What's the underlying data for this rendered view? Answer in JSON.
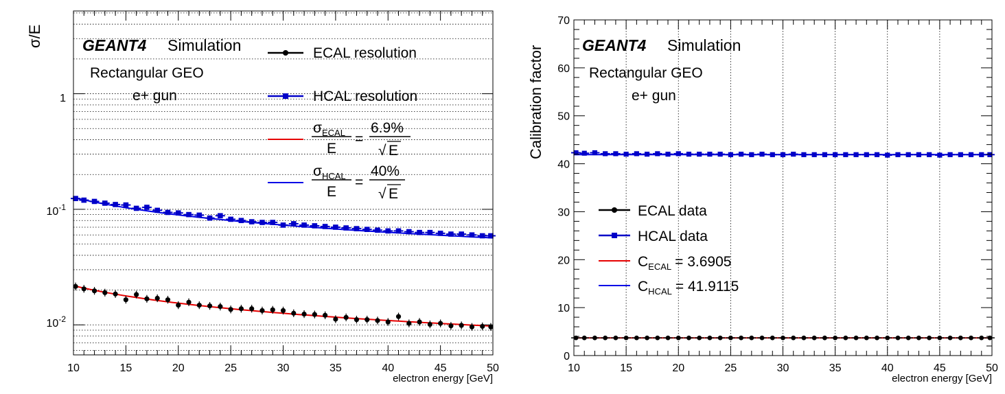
{
  "colors": {
    "ecal": "#000000",
    "hcal": "#0000c8",
    "ecal_fit": "#e60000",
    "hcal_fit": "#0000e6"
  },
  "chart_data": [
    {
      "type": "scatter",
      "ylabel": "σ/E",
      "xlabel": "electron energy [GeV]",
      "xlim": [
        10,
        50
      ],
      "ylim": [
        0.0055,
        5.2
      ],
      "yscale": "log",
      "grid": "horizontal",
      "x_ticks": [
        "10",
        "15",
        "20",
        "25",
        "30",
        "35",
        "40",
        "45",
        "50"
      ],
      "y_ticks": [
        "1",
        "10^-1",
        "10^-2"
      ],
      "annotation": {
        "geant": "GEANT4",
        "sim": "Simulation",
        "geo": "Rectangular GEO",
        "gun": "e+ gun"
      },
      "legend": {
        "position": "top-right",
        "ecal": "ECAL resolution",
        "hcal": "HCAL resolution",
        "ecal_fit": {
          "sigma": "σ",
          "sub": "ECAL",
          "den": "E",
          "eq": "=",
          "num": "6.9%",
          "root": "√",
          "root_den": "E"
        },
        "hcal_fit": {
          "sigma": "σ",
          "sub": "HCAL",
          "den": "E",
          "eq": "=",
          "num": "40%",
          "root": "√",
          "root_den": "E"
        }
      },
      "x": [
        10.2,
        11,
        12,
        13,
        14,
        15,
        16,
        17,
        18,
        19,
        20,
        21,
        22,
        23,
        24,
        25,
        26,
        27,
        28,
        29,
        30,
        31,
        32,
        33,
        34,
        35,
        36,
        37,
        38,
        39,
        40,
        41,
        42,
        43,
        44,
        45,
        46,
        47,
        48,
        49,
        49.8
      ],
      "series": [
        {
          "name": "ECAL resolution",
          "values": [
            0.0215,
            0.0205,
            0.0197,
            0.019,
            0.0185,
            0.0165,
            0.0183,
            0.0168,
            0.017,
            0.0165,
            0.0148,
            0.0157,
            0.0148,
            0.0146,
            0.0144,
            0.0136,
            0.0138,
            0.0138,
            0.0133,
            0.0135,
            0.0133,
            0.0126,
            0.0124,
            0.0123,
            0.0121,
            0.0112,
            0.0116,
            0.0111,
            0.0111,
            0.0109,
            0.0106,
            0.0118,
            0.0103,
            0.0106,
            0.0101,
            0.0103,
            0.0098,
            0.0099,
            0.0096,
            0.0097,
            0.0096
          ]
        },
        {
          "name": "HCAL resolution",
          "values": [
            0.124,
            0.12,
            0.117,
            0.113,
            0.11,
            0.109,
            0.102,
            0.104,
            0.098,
            0.094,
            0.093,
            0.09,
            0.089,
            0.084,
            0.088,
            0.082,
            0.08,
            0.078,
            0.077,
            0.077,
            0.073,
            0.075,
            0.073,
            0.072,
            0.071,
            0.07,
            0.069,
            0.068,
            0.067,
            0.066,
            0.065,
            0.065,
            0.064,
            0.063,
            0.063,
            0.062,
            0.061,
            0.061,
            0.06,
            0.059,
            0.059
          ]
        }
      ],
      "fits": [
        {
          "name": "σECAL/E = 6.9%/√E",
          "a": 0.069
        },
        {
          "name": "σHCAL/E = 40%/√E",
          "a": 0.4
        }
      ]
    },
    {
      "type": "scatter",
      "ylabel": "Calibration factor",
      "xlabel": "electron energy [GeV]",
      "xlim": [
        10,
        50
      ],
      "ylim": [
        0,
        70
      ],
      "grid": "vertical",
      "x_ticks": [
        "10",
        "15",
        "20",
        "25",
        "30",
        "35",
        "40",
        "45",
        "50"
      ],
      "y_ticks": [
        "0",
        "10",
        "20",
        "30",
        "40",
        "50",
        "60",
        "70"
      ],
      "annotation": {
        "geant": "GEANT4",
        "sim": "Simulation",
        "geo": "Rectangular GEO",
        "gun": "e+ gun"
      },
      "legend": {
        "position": "middle-left",
        "ecal": "ECAL data",
        "hcal": "HCAL data",
        "ecal_fit": {
          "sym": "C",
          "sub": "ECAL",
          "rest": "= 3.6905"
        },
        "hcal_fit": {
          "sym": "C",
          "sub": "HCAL",
          "rest": "= 41.9115"
        }
      },
      "x": [
        10.2,
        11,
        12,
        13,
        14,
        15,
        16,
        17,
        18,
        19,
        20,
        21,
        22,
        23,
        24,
        25,
        26,
        27,
        28,
        29,
        30,
        31,
        32,
        33,
        34,
        35,
        36,
        37,
        38,
        39,
        40,
        41,
        42,
        43,
        44,
        45,
        46,
        47,
        48,
        49,
        49.8
      ],
      "series": [
        {
          "name": "ECAL data",
          "values": [
            3.69,
            3.69,
            3.69,
            3.69,
            3.69,
            3.69,
            3.69,
            3.69,
            3.69,
            3.69,
            3.69,
            3.69,
            3.69,
            3.69,
            3.69,
            3.69,
            3.69,
            3.69,
            3.69,
            3.69,
            3.69,
            3.69,
            3.69,
            3.69,
            3.69,
            3.69,
            3.69,
            3.69,
            3.69,
            3.69,
            3.69,
            3.69,
            3.69,
            3.69,
            3.69,
            3.69,
            3.69,
            3.69,
            3.69,
            3.69,
            3.69
          ]
        },
        {
          "name": "HCAL data",
          "values": [
            42.3,
            42.2,
            42.3,
            42.1,
            42.1,
            42.0,
            42.1,
            42.0,
            42.1,
            42.0,
            42.1,
            42.0,
            42.0,
            42.0,
            42.0,
            41.9,
            42.0,
            41.9,
            42.0,
            41.9,
            41.9,
            42.0,
            41.9,
            41.9,
            41.9,
            41.9,
            41.9,
            41.9,
            41.9,
            41.9,
            41.8,
            41.9,
            41.9,
            41.9,
            41.9,
            41.8,
            41.9,
            41.9,
            41.9,
            41.9,
            41.9
          ]
        }
      ],
      "fits": [
        {
          "name": "C_ECAL = 3.6905",
          "value": 3.6905
        },
        {
          "name": "C_HCAL = 41.9115",
          "value": 41.9115
        }
      ]
    }
  ]
}
